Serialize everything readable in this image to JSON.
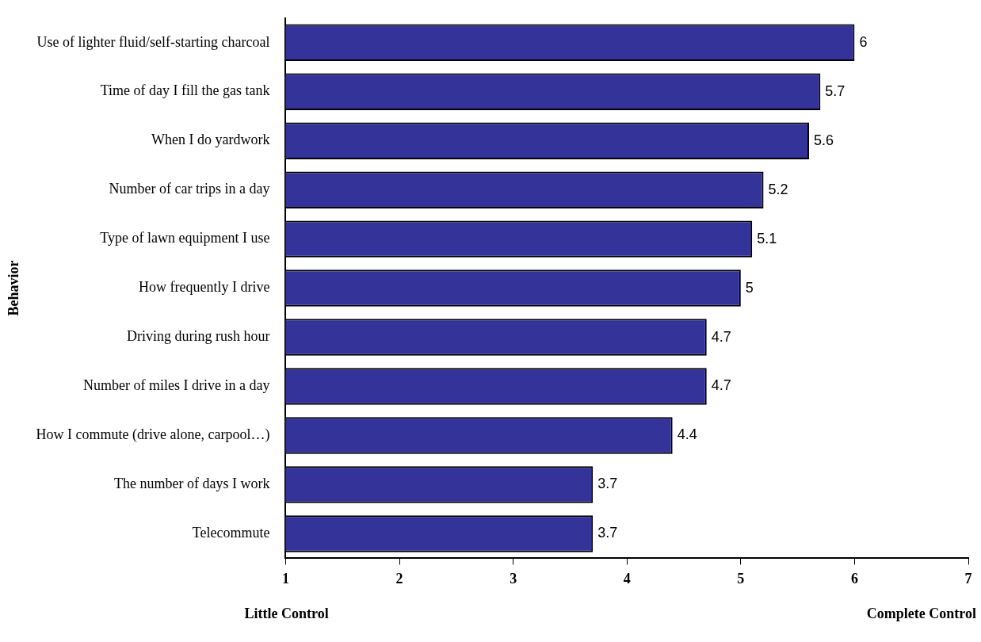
{
  "chart_data": {
    "type": "bar",
    "orientation": "horizontal",
    "ylabel": "Behavior",
    "categories": [
      "Use of lighter fluid/self-starting charcoal",
      "Time of day I fill the gas tank",
      "When I do yardwork",
      "Number of car trips in a day",
      "Type of lawn equipment I use",
      "How frequently I drive",
      "Driving during rush hour",
      "Number of miles I drive in a day",
      "How I commute (drive alone, carpool…)",
      "The number of days I work",
      "Telecommute"
    ],
    "values": [
      6,
      5.7,
      5.6,
      5.2,
      5.1,
      5,
      4.7,
      4.7,
      4.4,
      3.7,
      3.7
    ],
    "color": "#333399",
    "xlim": [
      1,
      7
    ],
    "xticks": [
      1,
      2,
      3,
      4,
      5,
      6,
      7
    ],
    "grid": false,
    "legend": false,
    "data_labels": true,
    "annotations": [
      "Little Control",
      "Complete Control"
    ]
  }
}
